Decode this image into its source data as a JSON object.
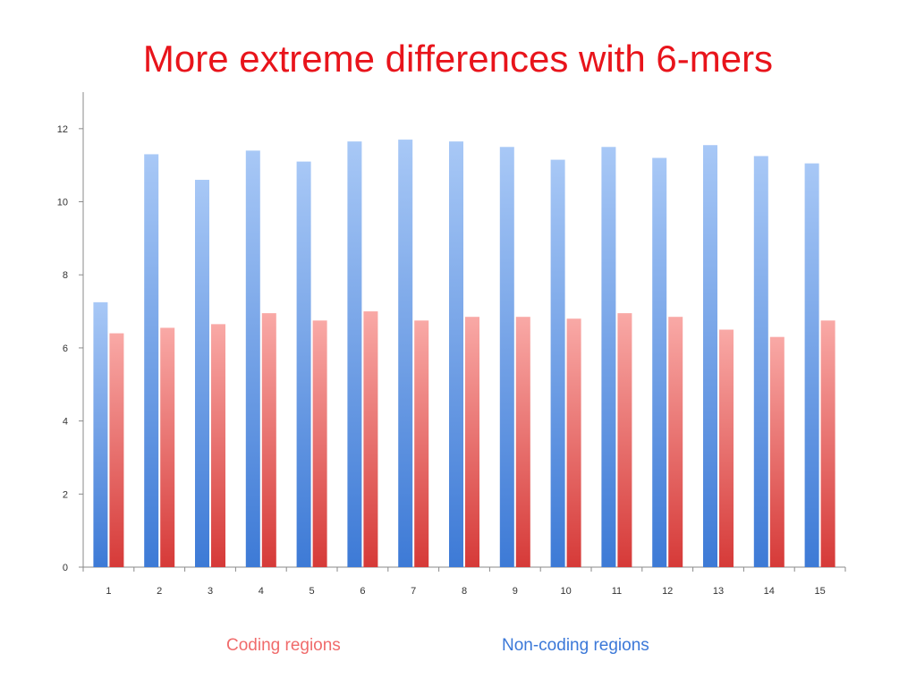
{
  "slide": {
    "title": "More extreme differences with 6-mers"
  },
  "colors": {
    "title": "#e8141b",
    "coding_series_top": "#f9a9a6",
    "coding_series_bottom": "#d63a38",
    "noncoding_series_top": "#a8c8f6",
    "noncoding_series_bottom": "#3d7ad6",
    "axis": "#8a8a8a",
    "legend_coding": "#f06b6b",
    "legend_noncoding": "#3b78d8"
  },
  "legend": {
    "coding": "Coding regions",
    "noncoding": "Non-coding regions"
  },
  "chart_data": {
    "type": "bar",
    "title": "More extreme differences with 6-mers",
    "xlabel": "",
    "ylabel": "",
    "categories": [
      "1",
      "2",
      "3",
      "4",
      "5",
      "6",
      "7",
      "8",
      "9",
      "10",
      "11",
      "12",
      "13",
      "14",
      "15"
    ],
    "series": [
      {
        "name": "Non-coding regions",
        "color": "#5b93e3",
        "values": [
          7.25,
          11.3,
          10.6,
          11.4,
          11.1,
          11.65,
          11.7,
          11.65,
          11.5,
          11.15,
          11.5,
          11.2,
          11.55,
          11.25,
          11.05
        ]
      },
      {
        "name": "Coding regions",
        "color": "#ef6a68",
        "values": [
          6.4,
          6.55,
          6.65,
          6.95,
          6.75,
          7.0,
          6.75,
          6.85,
          6.85,
          6.8,
          6.95,
          6.85,
          6.5,
          6.3,
          6.75
        ]
      }
    ],
    "ylim": [
      0,
      13
    ],
    "yticks": [
      0,
      2,
      4,
      6,
      8,
      10,
      12
    ],
    "grid": false,
    "legend_position": "bottom"
  }
}
